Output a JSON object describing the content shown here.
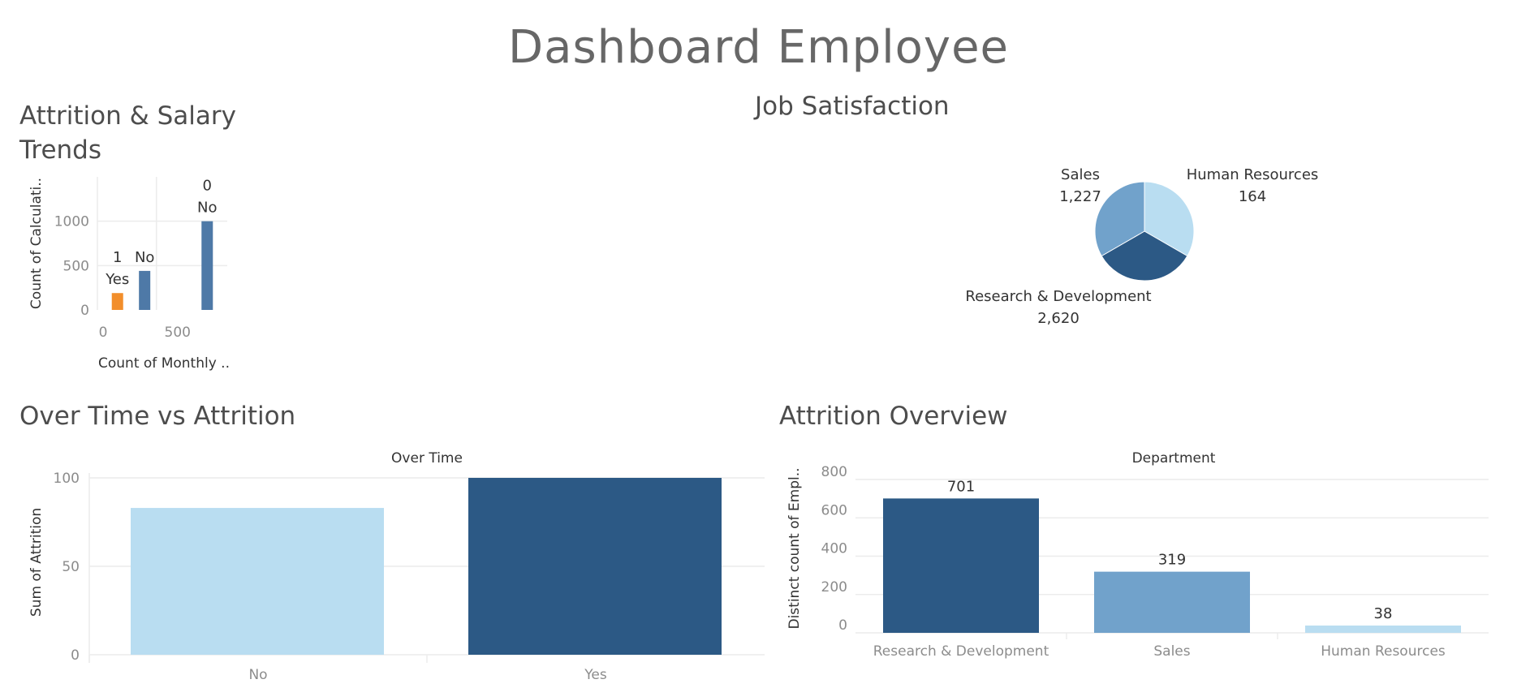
{
  "dashboard": {
    "title": "Dashboard Employee"
  },
  "colors": {
    "dark_blue": "#2c5985",
    "mid_blue": "#71a2cb",
    "light_blue": "#b9ddf1",
    "steel_blue": "#4e79a7",
    "orange": "#f28e2b"
  },
  "chart_data": [
    {
      "id": "attrition_salary",
      "type": "bar",
      "title": "Attrition & Salary Trends",
      "xlabel": "Count of Monthly ..",
      "ylabel": "Count of Calculati..",
      "x_ticks": [
        "0",
        "500"
      ],
      "y_ticks": [
        "0",
        "500",
        "1000"
      ],
      "ylim": [
        0,
        1500
      ],
      "xlim": [
        0,
        1100
      ],
      "grid": true,
      "bars": [
        {
          "x": 170,
          "value": 190,
          "label_top": "1",
          "label_bottom": "Yes",
          "color": "#f28e2b"
        },
        {
          "x": 400,
          "value": 440,
          "label_top": "",
          "label_bottom": "No",
          "color": "#4e79a7"
        },
        {
          "x": 930,
          "value": 1000,
          "label_top": "0",
          "label_bottom": "No",
          "color": "#4e79a7"
        }
      ]
    },
    {
      "id": "job_satisfaction",
      "type": "pie",
      "title": "Job Satisfaction",
      "slices": [
        {
          "label": "Human Resources",
          "value_label": "164",
          "value": 164,
          "color": "#b9ddf1"
        },
        {
          "label": "Research & Development",
          "value_label": "2,620",
          "value": 2620,
          "color": "#2c5985"
        },
        {
          "label": "Sales",
          "value_label": "1,227",
          "value": 1227,
          "color": "#71a2cb"
        }
      ]
    },
    {
      "id": "overtime_attrition",
      "type": "bar",
      "title": "Over Time vs Attrition",
      "header": "Over Time",
      "ylabel": "Sum of Attrition",
      "categories": [
        "No",
        "Yes"
      ],
      "values": [
        83,
        100
      ],
      "colors": [
        "#b9ddf1",
        "#2c5985"
      ],
      "y_ticks": [
        0,
        50,
        100
      ],
      "ylim": [
        0,
        100
      ],
      "grid": true
    },
    {
      "id": "attrition_overview",
      "type": "bar",
      "title": "Attrition Overview",
      "header": "Department",
      "ylabel": "Distinct count of Empl..",
      "categories": [
        "Research & Development",
        "Sales",
        "Human Resources"
      ],
      "values": [
        701,
        319,
        38
      ],
      "data_labels": [
        "701",
        "319",
        "38"
      ],
      "colors": [
        "#2c5985",
        "#71a2cb",
        "#b9ddf1"
      ],
      "y_ticks": [
        0,
        200,
        400,
        600,
        800
      ],
      "ylim": [
        0,
        800
      ],
      "grid": true
    }
  ]
}
